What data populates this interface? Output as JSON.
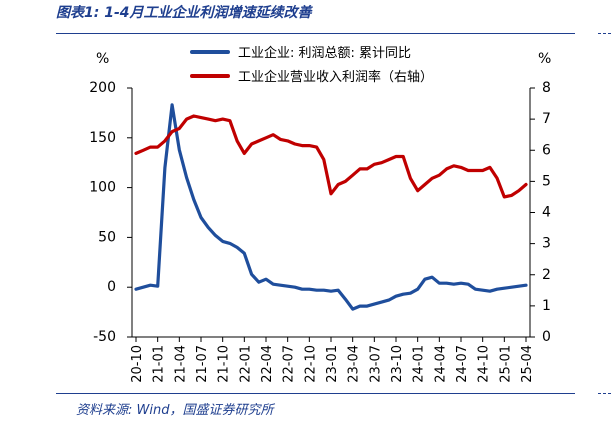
{
  "caption": "图表1:  1-4月工业企业利润增速延续改善",
  "source": "资料来源: Wind，国盛证券研究所",
  "chart_data": {
    "type": "line",
    "left_unit": "%",
    "right_unit": "%",
    "left_axis": {
      "min": -50,
      "max": 200,
      "ticks": [
        "-50",
        "0",
        "50",
        "100",
        "150",
        "200"
      ],
      "tick_values": [
        -50,
        0,
        50,
        100,
        150,
        200
      ]
    },
    "right_axis": {
      "min": 0,
      "max": 8,
      "ticks": [
        "0",
        "1",
        "2",
        "3",
        "4",
        "5",
        "6",
        "7",
        "8"
      ],
      "tick_values": [
        0,
        1,
        2,
        3,
        4,
        5,
        6,
        7,
        8
      ]
    },
    "x_tick_labels": [
      "20-10",
      "21-01",
      "21-04",
      "21-07",
      "21-10",
      "22-01",
      "22-04",
      "22-07",
      "22-10",
      "23-01",
      "23-04",
      "23-07",
      "23-10",
      "24-01",
      "24-04",
      "24-07",
      "24-10",
      "25-01",
      "25-04"
    ],
    "months": [
      "20-10",
      "20-11",
      "20-12",
      "21-01",
      "21-02",
      "21-03",
      "21-04",
      "21-05",
      "21-06",
      "21-07",
      "21-08",
      "21-09",
      "21-10",
      "21-11",
      "21-12",
      "22-01",
      "22-02",
      "22-03",
      "22-04",
      "22-05",
      "22-06",
      "22-07",
      "22-08",
      "22-09",
      "22-10",
      "22-11",
      "22-12",
      "23-01",
      "23-02",
      "23-03",
      "23-04",
      "23-05",
      "23-06",
      "23-07",
      "23-08",
      "23-09",
      "23-10",
      "23-11",
      "23-12",
      "24-01",
      "24-02",
      "24-03",
      "24-04",
      "24-05",
      "24-06",
      "24-07",
      "24-08",
      "24-09",
      "24-10",
      "24-11",
      "24-12",
      "25-01",
      "25-02",
      "25-03",
      "25-04"
    ],
    "series": [
      {
        "name": "工业企业: 利润总额: 累计同比",
        "axis": "left",
        "color": "#1f4e9c",
        "values": [
          -2,
          0,
          2,
          1,
          120,
          183,
          138,
          110,
          88,
          70,
          60,
          52,
          46,
          44,
          40,
          34,
          13,
          5,
          8,
          3,
          2,
          1,
          0,
          -2,
          -2,
          -3,
          -3,
          -4,
          -3,
          -12,
          -22,
          -19,
          -19,
          -17,
          -15,
          -13,
          -9,
          -7,
          -6,
          -2,
          8,
          10,
          4,
          4,
          3,
          4,
          3,
          -2,
          -3,
          -4,
          -2,
          -1,
          0,
          1,
          2
        ]
      },
      {
        "name": "工业企业营业收入利润率（右轴）",
        "axis": "right",
        "color": "#c00000",
        "values": [
          5.9,
          6.0,
          6.1,
          6.1,
          6.3,
          6.6,
          6.7,
          7.0,
          7.1,
          7.05,
          7.0,
          6.95,
          7.0,
          6.95,
          6.3,
          5.9,
          6.2,
          6.3,
          6.4,
          6.5,
          6.35,
          6.3,
          6.2,
          6.15,
          6.15,
          6.1,
          5.7,
          4.6,
          4.9,
          5.0,
          5.2,
          5.4,
          5.4,
          5.55,
          5.6,
          5.7,
          5.8,
          5.8,
          5.1,
          4.7,
          4.9,
          5.1,
          5.2,
          5.4,
          5.5,
          5.45,
          5.35,
          5.35,
          5.35,
          5.45,
          5.1,
          4.5,
          4.55,
          4.7,
          4.9
        ]
      }
    ]
  }
}
